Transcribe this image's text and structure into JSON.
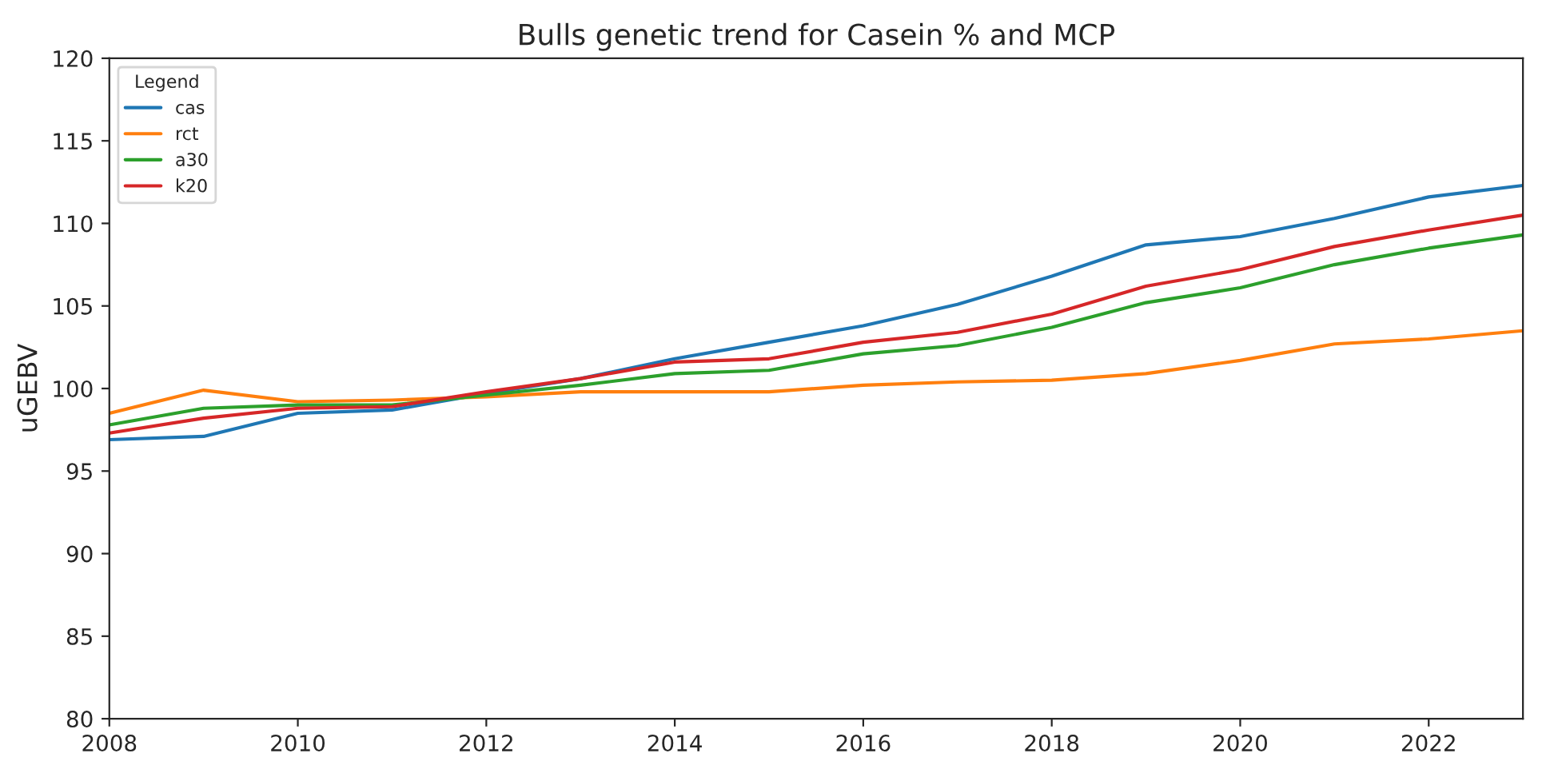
{
  "chart_data": {
    "type": "line",
    "title": "Bulls genetic trend for Casein % and MCP",
    "ylabel": "uGEBV",
    "legend_title": "Legend",
    "x": [
      2008,
      2009,
      2010,
      2011,
      2012,
      2013,
      2014,
      2015,
      2016,
      2017,
      2018,
      2019,
      2020,
      2021,
      2022,
      2023
    ],
    "series": [
      {
        "name": "cas",
        "color": "#1f77b4",
        "values": [
          96.9,
          97.1,
          98.5,
          98.7,
          99.7,
          100.6,
          101.8,
          102.8,
          103.8,
          105.1,
          106.8,
          108.7,
          109.2,
          110.3,
          111.6,
          112.3
        ]
      },
      {
        "name": "rct",
        "color": "#ff7f0e",
        "values": [
          98.5,
          99.9,
          99.2,
          99.3,
          99.5,
          99.8,
          99.8,
          99.8,
          100.2,
          100.4,
          100.5,
          100.9,
          101.7,
          102.7,
          103.0,
          103.5
        ]
      },
      {
        "name": "a30",
        "color": "#2ca02c",
        "values": [
          97.8,
          98.8,
          99.0,
          99.0,
          99.6,
          100.2,
          100.9,
          101.1,
          102.1,
          102.6,
          103.7,
          105.2,
          106.1,
          107.5,
          108.5,
          109.3
        ]
      },
      {
        "name": "k20",
        "color": "#d62728",
        "values": [
          97.3,
          98.2,
          98.8,
          98.9,
          99.8,
          100.6,
          101.6,
          101.8,
          102.8,
          103.4,
          104.5,
          106.2,
          107.2,
          108.6,
          109.6,
          110.5
        ]
      }
    ],
    "xlim": [
      2008,
      2023
    ],
    "xticks": [
      2008,
      2010,
      2012,
      2014,
      2016,
      2018,
      2020,
      2022
    ],
    "ylim": [
      80,
      120
    ],
    "yticks": [
      80,
      85,
      90,
      95,
      100,
      105,
      110,
      115,
      120
    ],
    "grid": false,
    "legend": "top left",
    "marker": "none",
    "line_style": "solid"
  }
}
